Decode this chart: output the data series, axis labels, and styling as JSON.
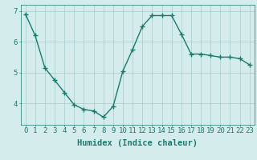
{
  "x": [
    0,
    1,
    2,
    3,
    4,
    5,
    6,
    7,
    8,
    9,
    10,
    11,
    12,
    13,
    14,
    15,
    16,
    17,
    18,
    19,
    20,
    21,
    22,
    23
  ],
  "y": [
    6.9,
    6.2,
    5.15,
    4.75,
    4.35,
    3.95,
    3.8,
    3.75,
    3.55,
    3.9,
    5.05,
    5.75,
    6.5,
    6.85,
    6.85,
    6.85,
    6.25,
    5.6,
    5.6,
    5.55,
    5.5,
    5.5,
    5.45,
    5.25
  ],
  "line_color": "#1a7a6e",
  "marker": "+",
  "marker_size": 4,
  "marker_lw": 1.0,
  "line_width": 1.0,
  "bg_color": "#d5ecec",
  "grid_color": "#a8cccc",
  "xlabel": "Humidex (Indice chaleur)",
  "ylim": [
    3.3,
    7.2
  ],
  "xlim": [
    -0.5,
    23.5
  ],
  "yticks": [
    4,
    5,
    6,
    7
  ],
  "xticks": [
    0,
    1,
    2,
    3,
    4,
    5,
    6,
    7,
    8,
    9,
    10,
    11,
    12,
    13,
    14,
    15,
    16,
    17,
    18,
    19,
    20,
    21,
    22,
    23
  ],
  "tick_label_fontsize": 6.5,
  "xlabel_fontsize": 7.5,
  "font_family": "monospace"
}
